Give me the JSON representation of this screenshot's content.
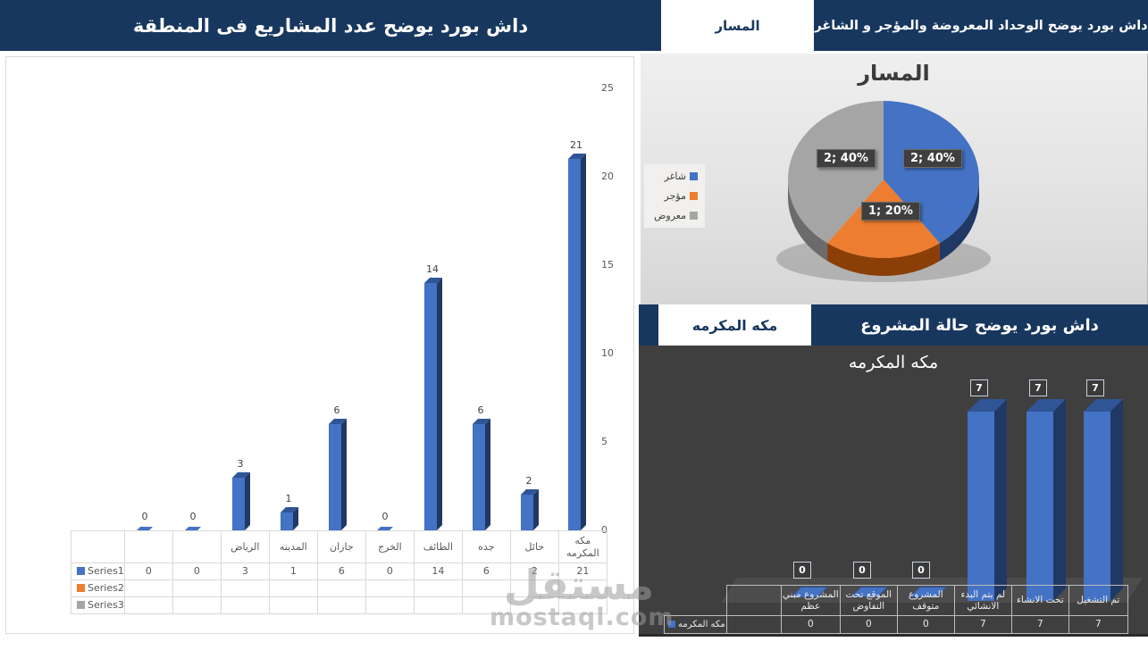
{
  "headers": {
    "region_title": "داش بورد يوضح عدد المشاريع فى المنطقة",
    "pie_tab": "المسار",
    "pie_title": "داش بورد يوضح الوحداد  المعروضة والمؤجر و الشاغر",
    "status_title": "داش بورد يوضح حالة المشروع",
    "status_tab": "مكه المكرمه"
  },
  "colors": {
    "navy": "#17375E",
    "bar_blue": "#4472C4",
    "bar_blue_top": "#2F5597",
    "bar_blue_side": "#203864",
    "orange": "#ED7D31",
    "orange_side": "#8B3E06",
    "gray": "#A5A5A5",
    "gray_side": "#6B6B6B",
    "dark_bg": "#3F3F3F"
  },
  "chart_data": [
    {
      "type": "bar",
      "title": "داش بورد يوضح عدد المشاريع فى المنطقة",
      "categories": [
        "",
        "",
        "الرياض",
        "المدينه",
        "جازان",
        "الخرج",
        "الطائف",
        "جده",
        "حائل",
        "مكه المكرمه"
      ],
      "series": [
        {
          "name": "Series1",
          "color": "#4472C4",
          "values": [
            0,
            0,
            3,
            1,
            6,
            0,
            14,
            6,
            2,
            21
          ]
        },
        {
          "name": "Series2",
          "color": "#ED7D31",
          "values": []
        },
        {
          "name": "Series3",
          "color": "#A5A5A5",
          "values": []
        }
      ],
      "ylim": [
        0,
        25
      ],
      "yticks": [
        0,
        5,
        10,
        15,
        20,
        25
      ],
      "grid": false,
      "legend_position": "table-left",
      "bar_style": "3d-column"
    },
    {
      "type": "pie",
      "title": "المسار",
      "labels": [
        "شاغر",
        "مؤجر",
        "معروض"
      ],
      "values": [
        2,
        1,
        2
      ],
      "percents": [
        "40%",
        "20%",
        "40%"
      ],
      "data_labels": [
        "2; 40%",
        "1; 20%",
        "2; 40%"
      ],
      "colors": [
        "#4472C4",
        "#ED7D31",
        "#A5A5A5"
      ],
      "legend_position": "left",
      "style": "3d-pie"
    },
    {
      "type": "bar",
      "title": "مكه المكرمه",
      "categories": [
        "المشروع مبني عظم",
        "الموقع تحت التفاوض",
        "المشروع متوقف",
        "لم يتم البدء الانشائي",
        "تحت الانشاء",
        "تم التشغيل"
      ],
      "series": [
        {
          "name": "مكه المكرمه",
          "color": "#4472C4",
          "values": [
            0,
            0,
            0,
            7,
            7,
            7
          ]
        }
      ],
      "grid": false,
      "legend_position": "table-left",
      "bar_style": "3d-column",
      "background": "#3F3F3F"
    }
  ],
  "watermark": {
    "line1": "مستقل",
    "line2": "mostaql.com"
  }
}
